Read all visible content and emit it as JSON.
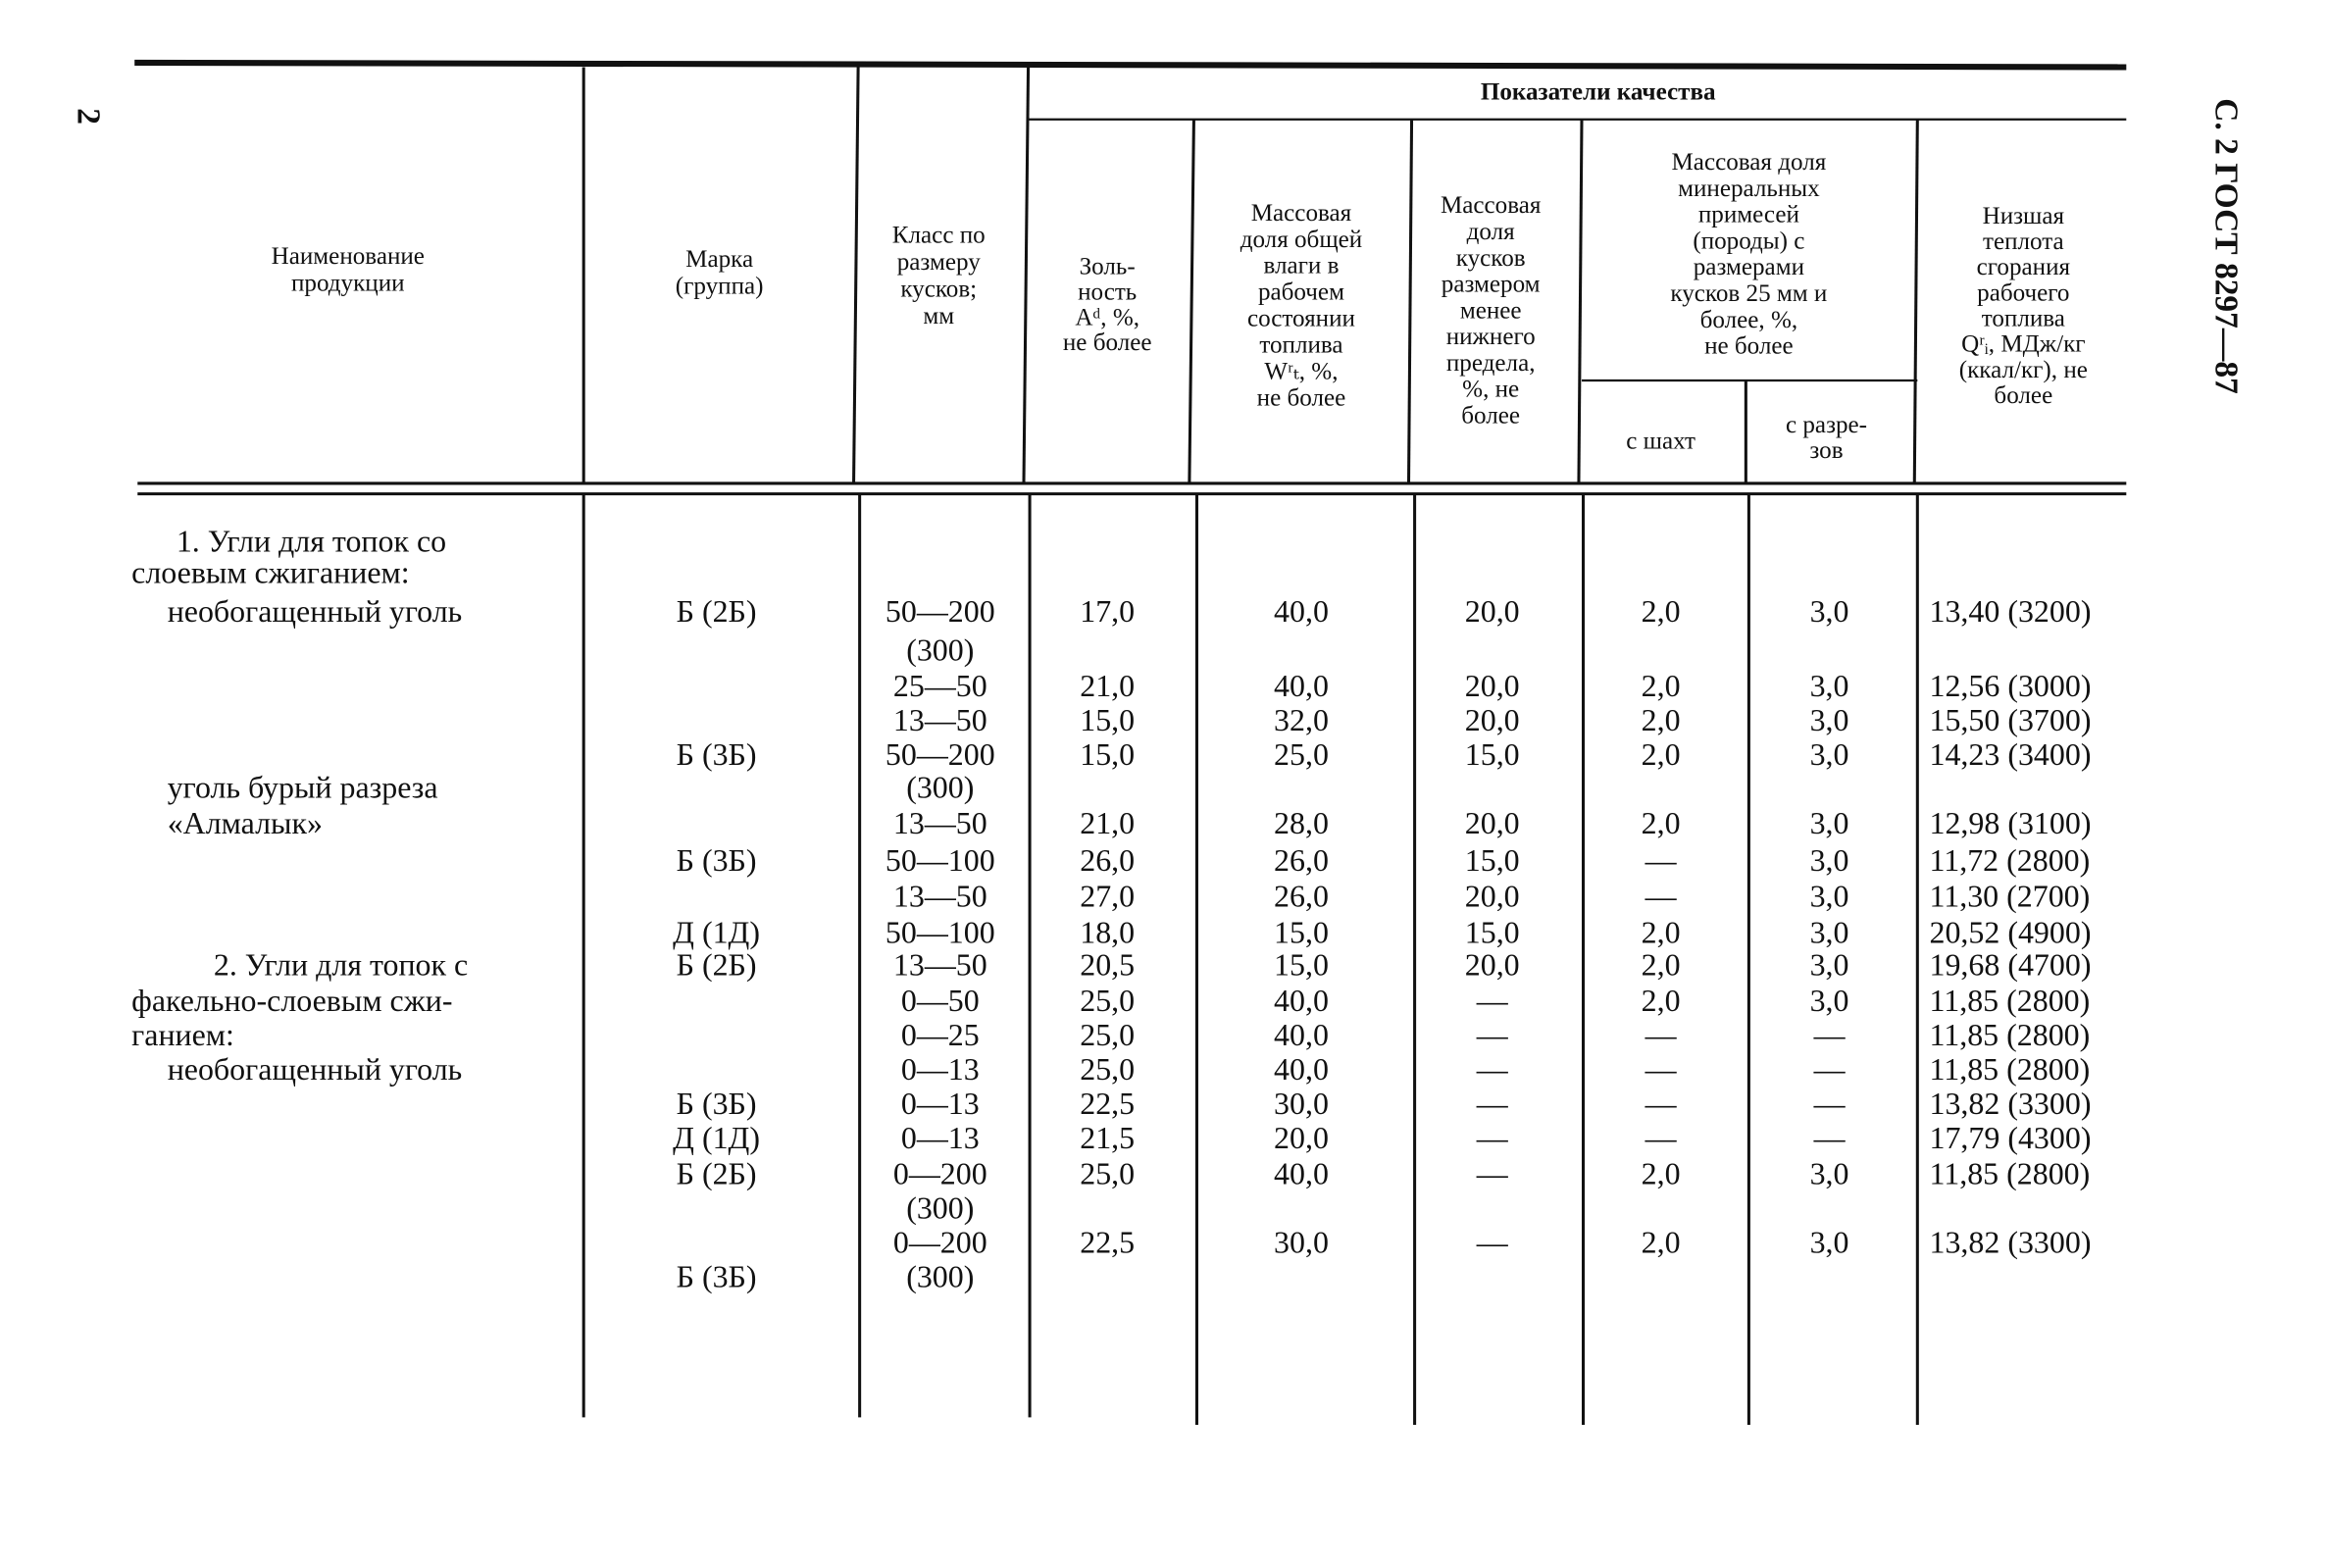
{
  "page_number": "2",
  "running_header": "С. 2 ГОСТ 8297—87",
  "table": {
    "header": {
      "product": [
        "Наименование",
        "продукции"
      ],
      "mark": [
        "Марка",
        "(группа)"
      ],
      "size_class": [
        "Класс по",
        "размеру",
        "кусков;",
        "мм"
      ],
      "quality_group": "Показатели качества",
      "ash": [
        "Золь-",
        "ность",
        "Aᵈ, %,",
        "не более"
      ],
      "moisture": [
        "Массовая",
        "доля общей",
        "влаги в",
        "рабочем",
        "состоянии",
        "топлива",
        "Wʳₜ, %,",
        "не более"
      ],
      "fines": [
        "Массовая",
        "доля",
        "кусков",
        "размером",
        "менее",
        "нижнего",
        "предела,",
        "%, не",
        "более"
      ],
      "mineral_group": [
        "Массовая доля",
        "минеральных",
        "примесей",
        "(породы) с",
        "размерами",
        "кусков 25 мм и",
        "более, %,",
        "не более"
      ],
      "from_mines": "с шахт",
      "from_pits": [
        "с разре-",
        "зов"
      ],
      "heat": [
        "Низшая",
        "теплота",
        "сгорания",
        "рабочего",
        "топлива",
        "Qʳᵢ, МДж/кг",
        "(ккал/кг), не",
        "более"
      ]
    },
    "rows": [
      [
        "1. Угли для топок со",
        null,
        null,
        null,
        null,
        null,
        null,
        null,
        null
      ],
      [
        "слоевым сжиганием:",
        null,
        null,
        null,
        null,
        null,
        null,
        null,
        null
      ],
      [
        "необогащенный уголь",
        "Б (2Б)",
        "50—200",
        "17,0",
        "40,0",
        "20,0",
        "2,0",
        "3,0",
        "13,40 (3200)"
      ],
      [
        null,
        null,
        "(300)",
        null,
        null,
        null,
        null,
        null,
        null
      ],
      [
        null,
        null,
        "25—50",
        "21,0",
        "40,0",
        "20,0",
        "2,0",
        "3,0",
        "12,56 (3000)"
      ],
      [
        null,
        null,
        "13—50",
        "15,0",
        "32,0",
        "20,0",
        "2,0",
        "3,0",
        "15,50 (3700)"
      ],
      [
        null,
        "Б (3Б)",
        "50—200",
        "15,0",
        "25,0",
        "15,0",
        "2,0",
        "3,0",
        "14,23 (3400)"
      ],
      [
        "уголь бурый разреза",
        null,
        "(300)",
        null,
        null,
        null,
        null,
        null,
        null
      ],
      [
        "«Алмалык»",
        null,
        "13—50",
        "21,0",
        "28,0",
        "20,0",
        "2,0",
        "3,0",
        "12,98 (3100)"
      ],
      [
        null,
        "Б (3Б)",
        "50—100",
        "26,0",
        "26,0",
        "15,0",
        "—",
        "3,0",
        "11,72 (2800)"
      ],
      [
        null,
        null,
        "13—50",
        "27,0",
        "26,0",
        "20,0",
        "—",
        "3,0",
        "11,30 (2700)"
      ],
      [
        null,
        "Д (1Д)",
        "50—100",
        "18,0",
        "15,0",
        "15,0",
        "2,0",
        "3,0",
        "20,52 (4900)"
      ],
      [
        "2. Угли для топок с",
        "Б (2Б)",
        "13—50",
        "20,5",
        "15,0",
        "20,0",
        "2,0",
        "3,0",
        "19,68 (4700)"
      ],
      [
        "факельно-слоевым сжи-",
        null,
        "0—50",
        "25,0",
        "40,0",
        "—",
        "2,0",
        "3,0",
        "11,85 (2800)"
      ],
      [
        "ганием:",
        null,
        "0—25",
        "25,0",
        "40,0",
        "—",
        "—",
        "—",
        "11,85 (2800)"
      ],
      [
        "необогащенный уголь",
        null,
        "0—13",
        "25,0",
        "40,0",
        "—",
        "—",
        "—",
        "11,85 (2800)"
      ],
      [
        null,
        "Б (3Б)",
        "0—13",
        "22,5",
        "30,0",
        "—",
        "—",
        "—",
        "13,82 (3300)"
      ],
      [
        null,
        "Д (1Д)",
        "0—13",
        "21,5",
        "20,0",
        "—",
        "—",
        "—",
        "17,79 (4300)"
      ],
      [
        null,
        "Б (2Б)",
        "0—200",
        "25,0",
        "40,0",
        "—",
        "2,0",
        "3,0",
        "11,85 (2800)"
      ],
      [
        null,
        null,
        "(300)",
        null,
        null,
        null,
        null,
        null,
        null
      ],
      [
        null,
        null,
        "0—200",
        "22,5",
        "30,0",
        "—",
        "2,0",
        "3,0",
        "13,82 (3300)"
      ],
      [
        null,
        "Б (3Б)",
        "(300)",
        null,
        null,
        null,
        null,
        null,
        null
      ]
    ]
  }
}
